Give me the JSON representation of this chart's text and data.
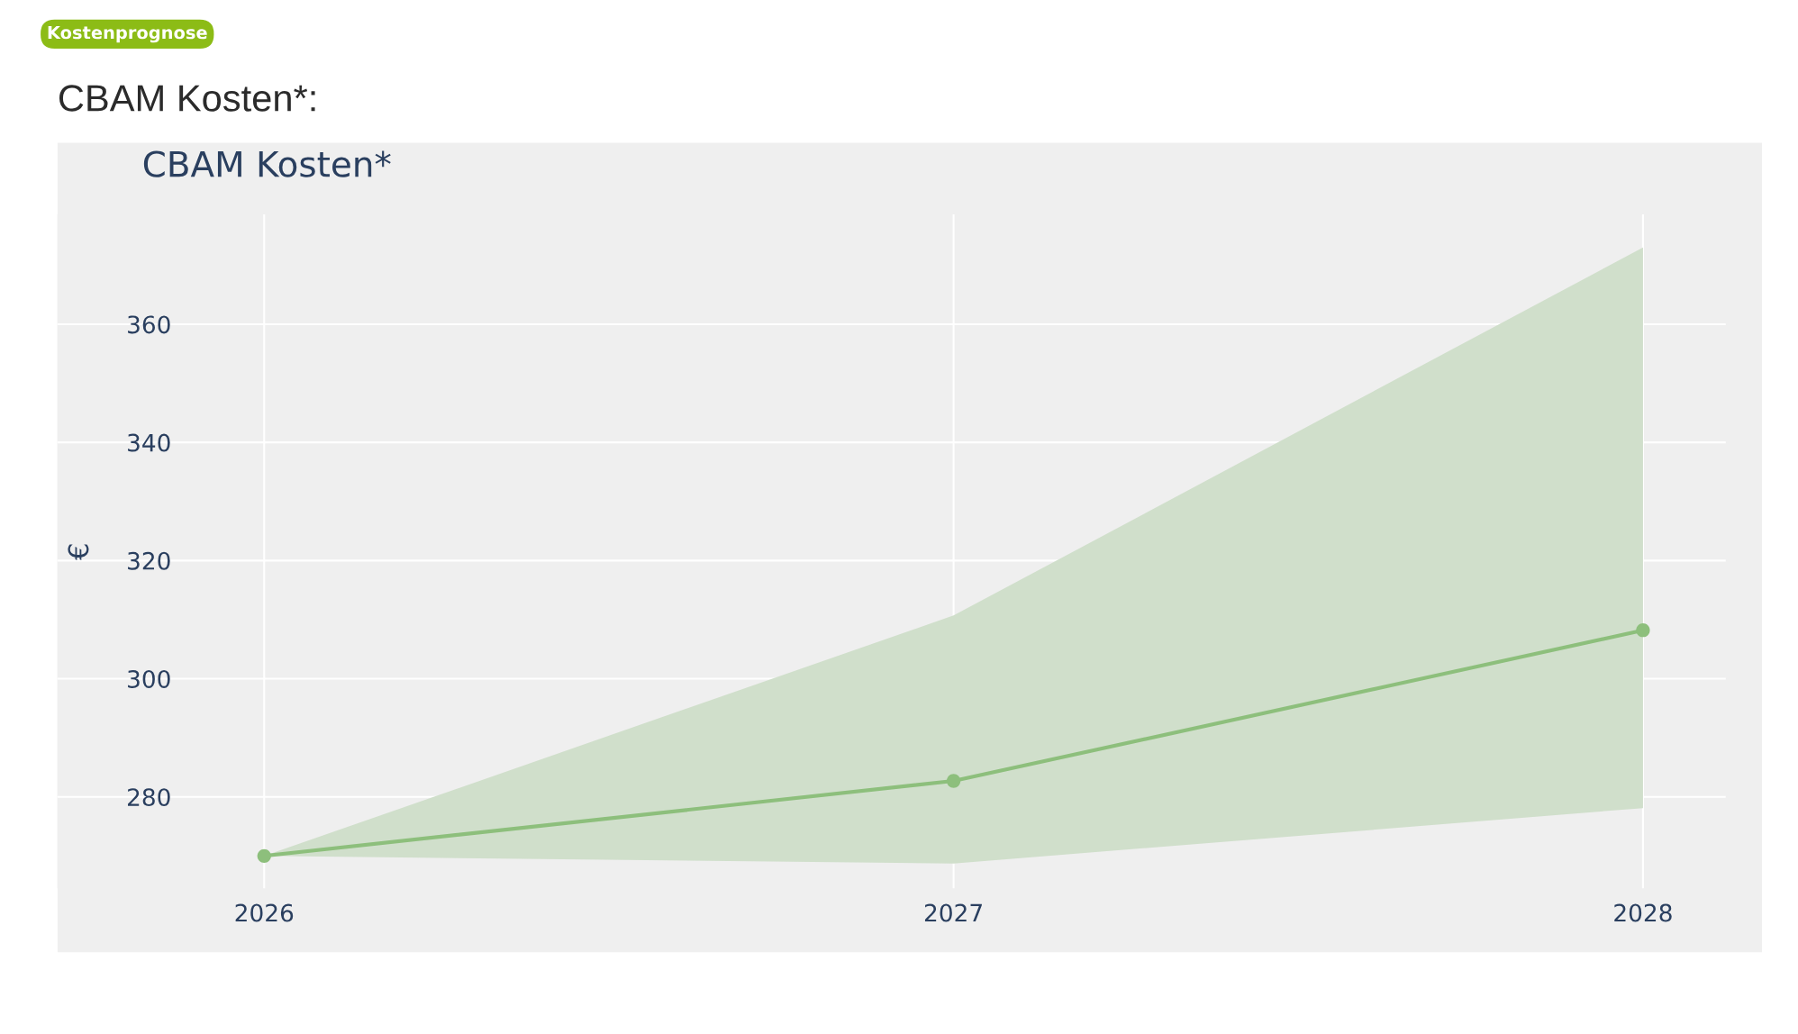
{
  "chart_data": {
    "type": "line",
    "title": "CBAM Kosten*:",
    "subtitle": "CBAM Kosten*",
    "ylabel": "€",
    "annotations": [
      "Kostenprognose"
    ],
    "x": [
      2026,
      2027,
      2028
    ],
    "series": [
      {
        "color": "#8dbf7c",
        "marker": "circle",
        "values": [
          270,
          282.7,
          308.2
        ],
        "lower": [
          270,
          268.7,
          278.1
        ],
        "upper": [
          270,
          310.7,
          373
        ]
      }
    ],
    "xlim": [
      2025.7,
      2028.12
    ],
    "xticks": [
      2026,
      2027,
      2028
    ],
    "ylim": [
      264.5,
      378.6
    ],
    "yticks": [
      280,
      300,
      320,
      340,
      360
    ],
    "grid": true,
    "legend": false,
    "line_style": "solid"
  }
}
